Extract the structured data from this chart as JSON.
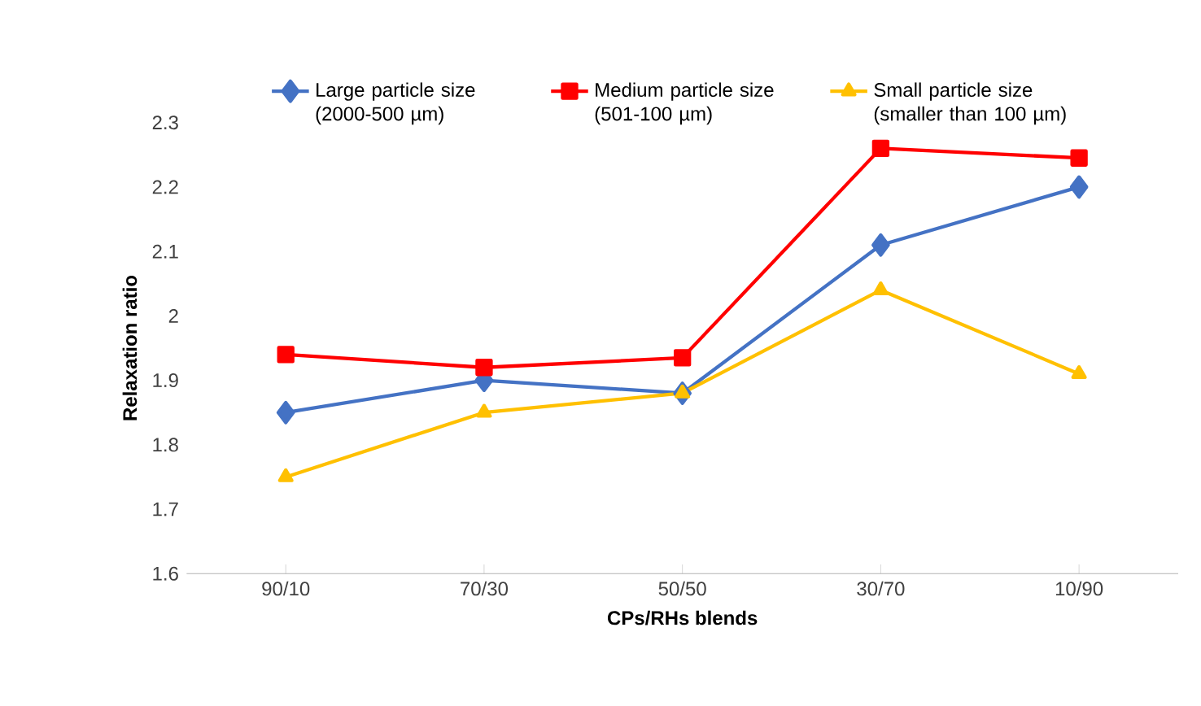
{
  "chart_data": {
    "type": "line",
    "xlabel": "CPs/RHs blends",
    "ylabel": "Relaxation ratio",
    "categories": [
      "90/10",
      "70/30",
      "50/50",
      "30/70",
      "10/90"
    ],
    "series": [
      {
        "name": "Large particle size (2000-500 µm)",
        "color": "#4472c4",
        "marker": "diamond",
        "values": [
          1.85,
          1.9,
          1.88,
          2.11,
          2.2
        ]
      },
      {
        "name": "Medium particle size (501-100 µm)",
        "color": "#ff0000",
        "marker": "square",
        "values": [
          1.94,
          1.92,
          1.935,
          2.26,
          2.245
        ]
      },
      {
        "name": "Small particle size (smaller than 100 µm)",
        "color": "#ffc000",
        "marker": "triangle",
        "values": [
          1.75,
          1.85,
          1.88,
          2.04,
          1.91
        ]
      }
    ],
    "ylim": [
      1.6,
      2.3
    ],
    "yticks": [
      1.6,
      1.7,
      1.8,
      1.9,
      2,
      2.1,
      2.2,
      2.3
    ],
    "grid": false,
    "legend": "top",
    "line_style": "solid"
  }
}
